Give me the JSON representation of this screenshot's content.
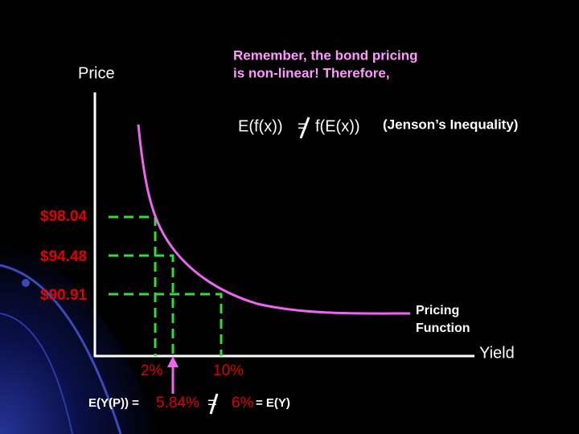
{
  "note": {
    "lines": [
      "Remember, the bond pricing",
      "is non-linear! Therefore,"
    ]
  },
  "equation": {
    "left": "E(f(x))",
    "operator": "=",
    "right": "f(E(x))",
    "name": "(Jenson’s Inequality)"
  },
  "axes": {
    "y_label": "Price",
    "x_label": "Yield"
  },
  "price_labels": [
    "$98.04",
    "$94.48",
    "$90.91"
  ],
  "yield_labels": [
    "2%",
    "10%"
  ],
  "curve_label": [
    "Pricing",
    "Function"
  ],
  "bottom": {
    "left": "E(Y(P)) =",
    "value": "5.84%",
    "operator": "=",
    "mean": "6%",
    "right": "= E(Y)"
  }
}
